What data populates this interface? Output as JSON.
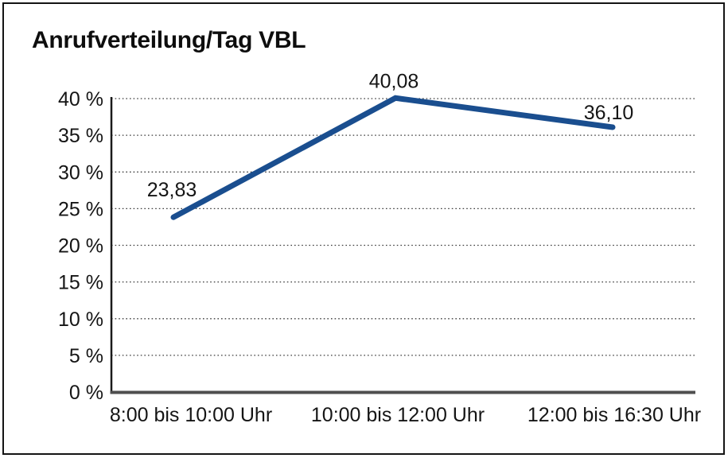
{
  "chart": {
    "title": "Anrufverteilung/Tag VBL"
  },
  "colors": {
    "line": "#1a4e8f",
    "grid": "#3c3c3c",
    "x_axis": "#4f4f4f",
    "y_axis": "#1a1a1a",
    "text": "#151515",
    "frame": "#141414"
  },
  "chart_data": {
    "type": "line",
    "title": "Anrufverteilung/Tag VBL",
    "categories": [
      "8:00 bis 10:00 Uhr",
      "10:00 bis 12:00 Uhr",
      "12:00 bis 16:30 Uhr"
    ],
    "series": [
      {
        "name": "Anrufverteilung",
        "values": [
          23.83,
          40.08,
          36.1
        ]
      }
    ],
    "data_labels": [
      "23,83",
      "40,08",
      "36,10"
    ],
    "xlabel": "",
    "ylabel": "%",
    "ylim": [
      0,
      40
    ],
    "ytick_step": 5,
    "ytick_labels": [
      "0 %",
      "5 %",
      "10 %",
      "15 %",
      "20 %",
      "25 %",
      "30 %",
      "35 %",
      "40 %"
    ],
    "grid": "horizontal-dotted",
    "legend": "none"
  }
}
